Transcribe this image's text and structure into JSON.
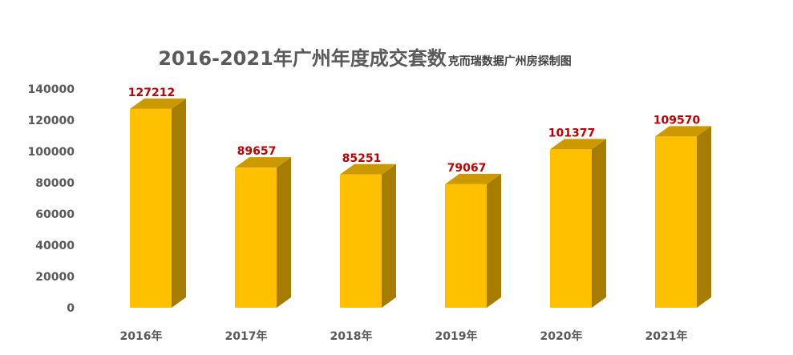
{
  "chart_data": {
    "type": "bar",
    "title": "2016-2021年广州年度成交套数",
    "subtitle": "克而瑞数据广州房探制图",
    "categories": [
      "2016年",
      "2017年",
      "2018年",
      "2019年",
      "2020年",
      "2021年"
    ],
    "values": [
      127212,
      89657,
      85251,
      79067,
      101377,
      109570
    ],
    "ylim": [
      0,
      140000
    ],
    "yticks": [
      0,
      20000,
      40000,
      60000,
      80000,
      100000,
      120000,
      140000
    ],
    "grid": false,
    "legend": "none",
    "colors": {
      "front": "#ffc000",
      "side": "#a67d00",
      "top": "#cc9a00",
      "label": "#c00000"
    }
  }
}
